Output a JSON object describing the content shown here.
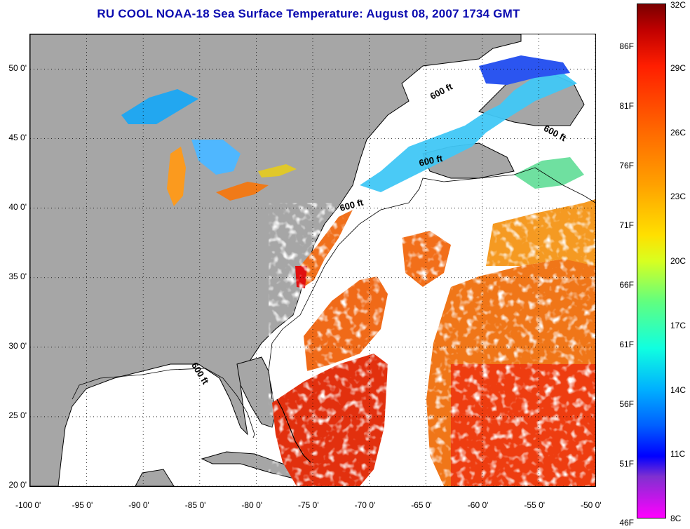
{
  "title": "RU COOL  NOAA-18  Sea Surface Temperature:  August 08, 2007 1734 GMT",
  "map": {
    "lon_range": [
      -100,
      -50
    ],
    "lat_range": [
      20,
      52.5
    ],
    "grid": "dotted",
    "lat_ticks": [
      {
        "value": 50,
        "label": "50 0'"
      },
      {
        "value": 45,
        "label": "45 0'"
      },
      {
        "value": 40,
        "label": "40 0'"
      },
      {
        "value": 35,
        "label": "35 0'"
      },
      {
        "value": 30,
        "label": "30 0'"
      },
      {
        "value": 25,
        "label": "25 0'"
      },
      {
        "value": 20,
        "label": "20 0'"
      }
    ],
    "lon_ticks": [
      {
        "value": -100,
        "label": "-100 0'"
      },
      {
        "value": -95,
        "label": "-95 0'"
      },
      {
        "value": -90,
        "label": "-90 0'"
      },
      {
        "value": -85,
        "label": "-85 0'"
      },
      {
        "value": -80,
        "label": "-80 0'"
      },
      {
        "value": -75,
        "label": "-75 0'"
      },
      {
        "value": -70,
        "label": "-70 0'"
      },
      {
        "value": -65,
        "label": "-65 0'"
      },
      {
        "value": -60,
        "label": "-60 0'"
      },
      {
        "value": -55,
        "label": "-55 0'"
      },
      {
        "value": -50,
        "label": "-50 0'"
      }
    ],
    "isobath_labels": [
      {
        "text": "600 ft",
        "lon": -63.5,
        "lat": 48.2,
        "angle": -28
      },
      {
        "text": "600 ft",
        "lon": -53.7,
        "lat": 45.2,
        "angle": 28
      },
      {
        "text": "600 ft",
        "lon": -64.5,
        "lat": 43.2,
        "angle": -12
      },
      {
        "text": "600 ft",
        "lon": -71.5,
        "lat": 40.0,
        "angle": -15
      },
      {
        "text": "600 ft",
        "lon": -85.2,
        "lat": 28.0,
        "angle": 58
      }
    ],
    "colors": {
      "land": "#a6a6a6",
      "no_data": "#ffffff",
      "coast": "#000000"
    }
  },
  "colorbar": {
    "f_labels": [
      "86F",
      "81F",
      "76F",
      "71F",
      "66F",
      "61F",
      "56F",
      "51F",
      "46F"
    ],
    "c_labels": [
      "32C",
      "29C",
      "26C",
      "23C",
      "20C",
      "17C",
      "14C",
      "11C",
      "8C"
    ],
    "range_c": [
      8,
      32
    ]
  }
}
